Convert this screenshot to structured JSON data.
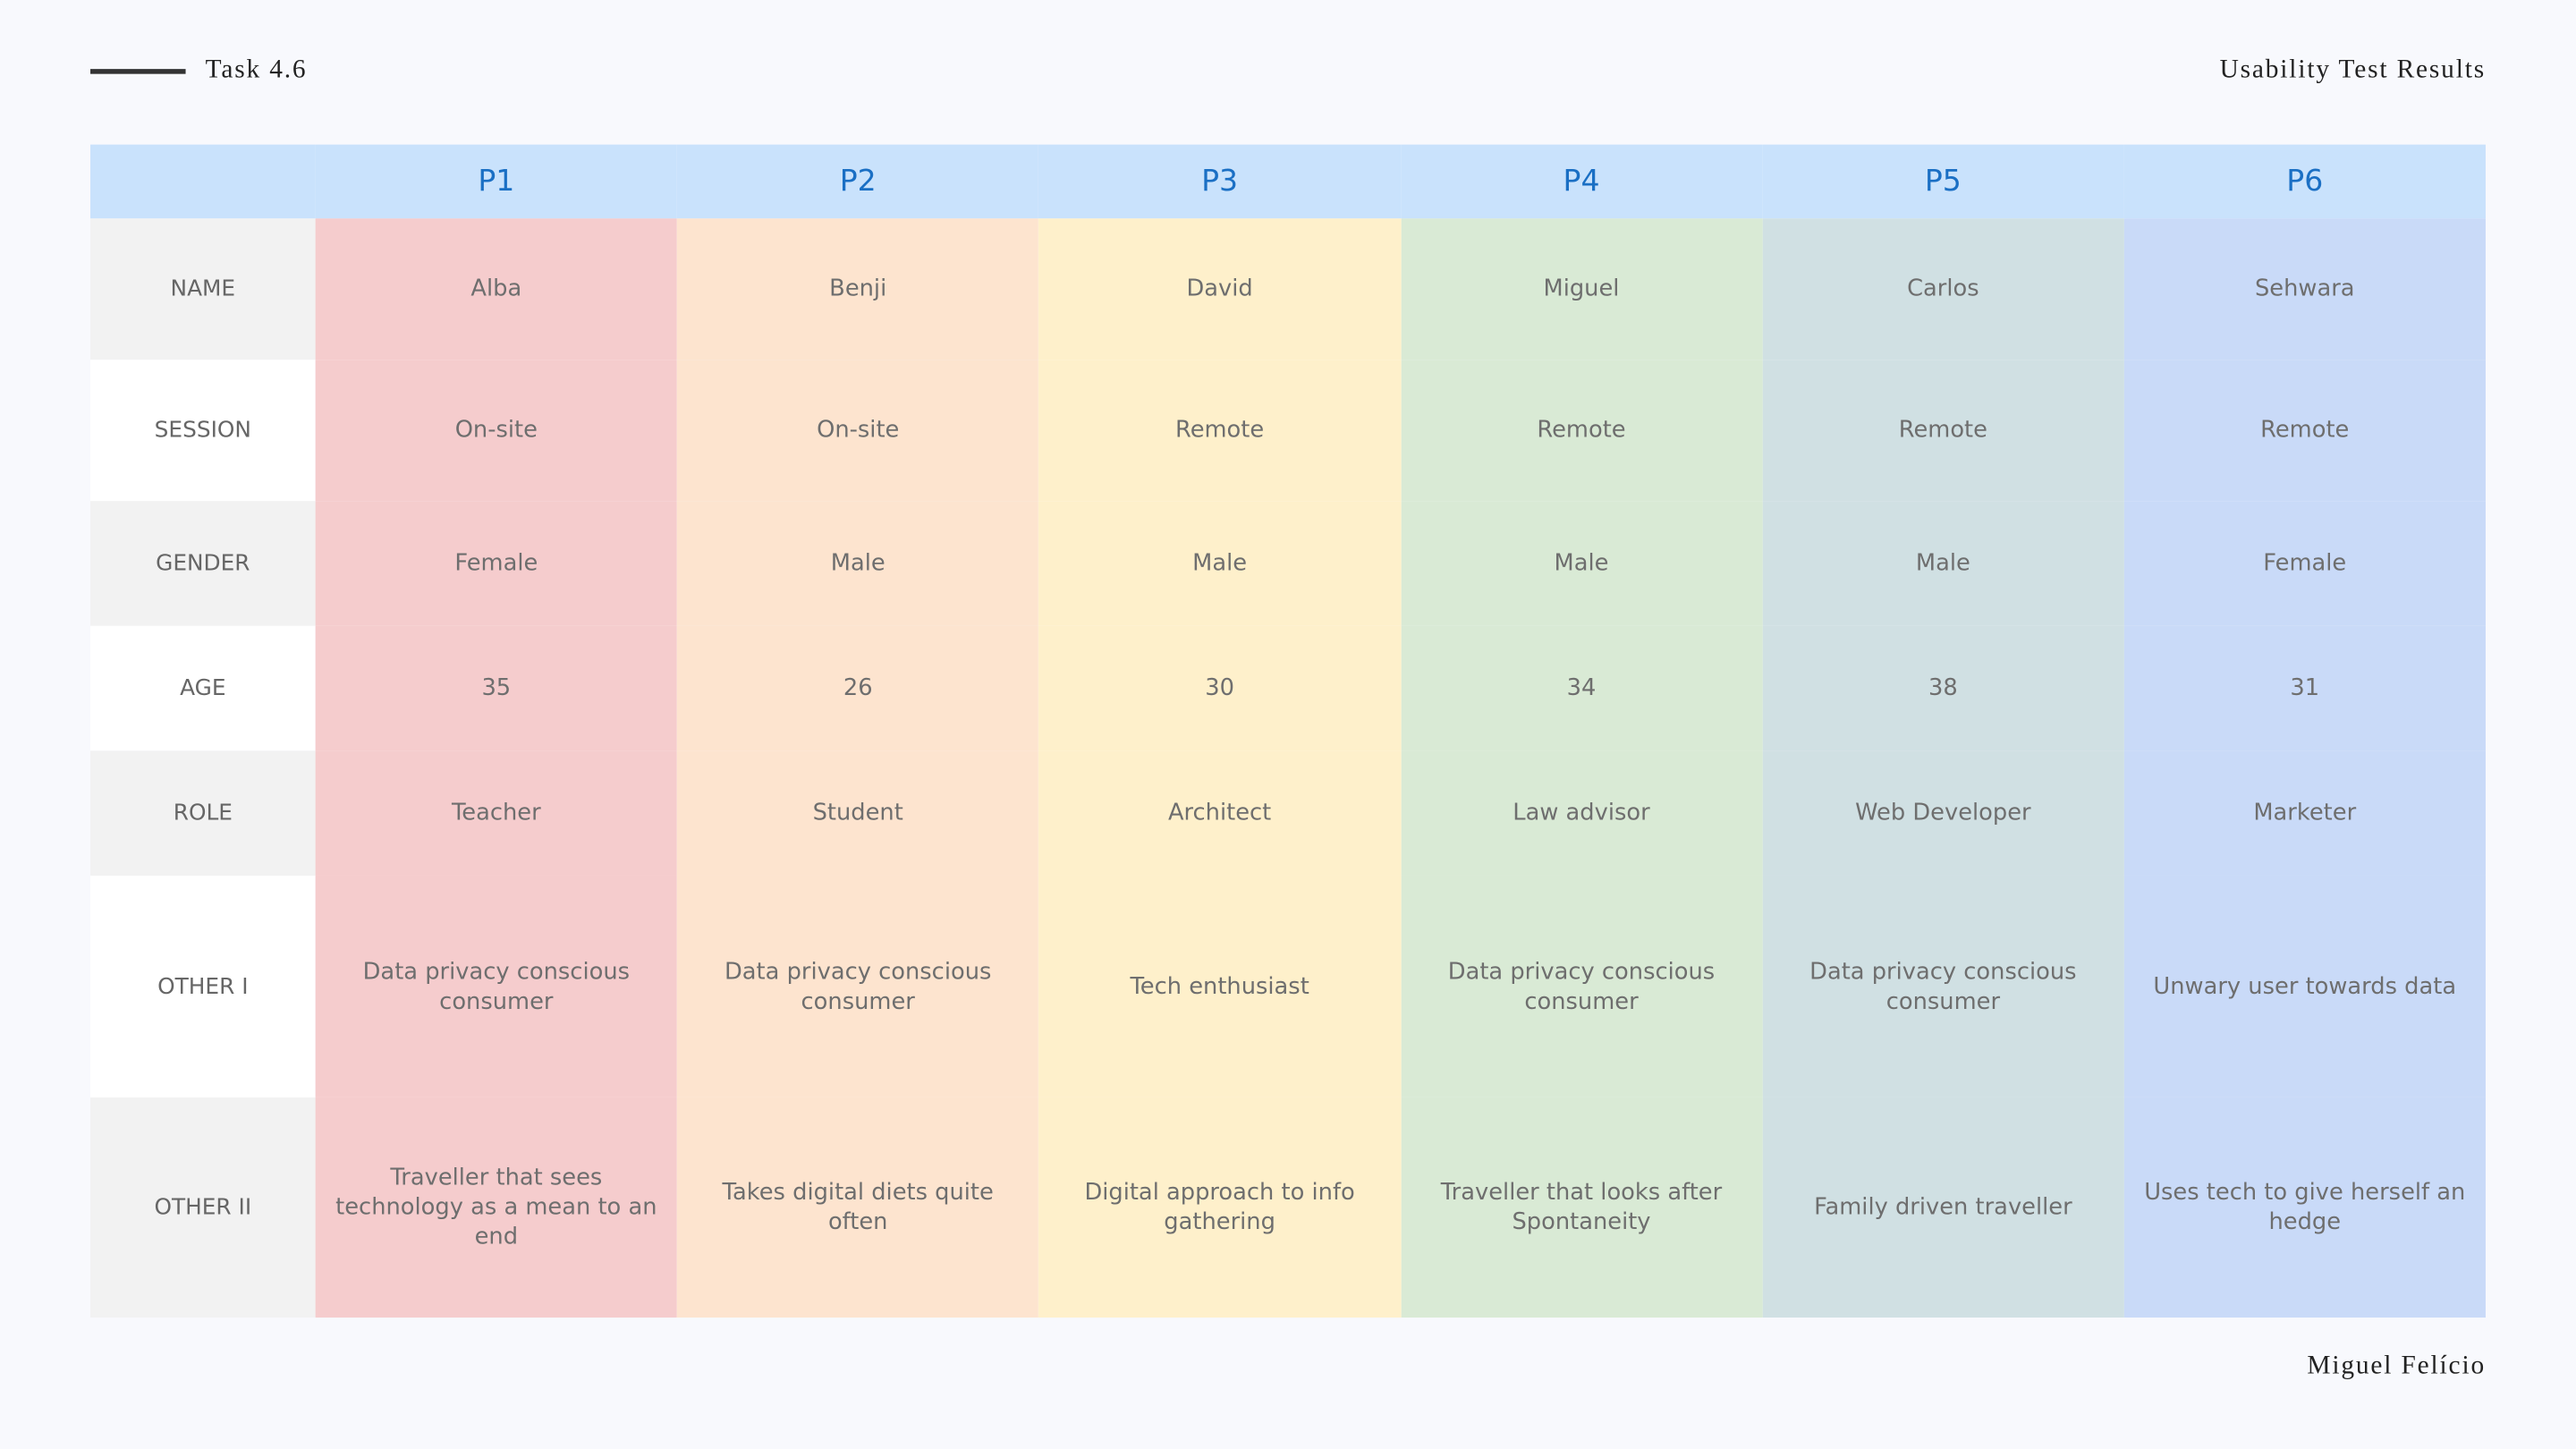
{
  "header": {
    "label": "Task 4.6",
    "title": "Usability Test Results"
  },
  "table": {
    "columns": [
      "P1",
      "P2",
      "P3",
      "P4",
      "P5",
      "P6"
    ],
    "rows": [
      [
        "NAME",
        "Alba",
        "Benji",
        "David",
        "Miguel",
        "Carlos",
        "Sehwara"
      ],
      [
        "SESSION",
        "On-site",
        "On-site",
        "Remote",
        "Remote",
        "Remote",
        "Remote"
      ],
      [
        "GENDER",
        "Female",
        "Male",
        "Male",
        "Male",
        "Male",
        "Female"
      ],
      [
        "AGE",
        "35",
        "26",
        "30",
        "34",
        "38",
        "31"
      ],
      [
        "ROLE",
        "Teacher",
        "Student",
        "Architect",
        "Law advisor",
        "Web Developer",
        "Marketer"
      ],
      [
        "OTHER I",
        "Data privacy conscious consumer",
        "Data privacy conscious consumer",
        "Tech enthusiast",
        "Data privacy conscious consumer",
        "Data privacy conscious consumer",
        "Unwary user towards data"
      ],
      [
        "OTHER II",
        "Traveller that sees technology as a mean to an end",
        "Takes digital diets quite often",
        "Digital approach to info gathering",
        "Traveller that looks after Spontaneity",
        "Family driven traveller",
        "Uses tech to give herself an hedge"
      ]
    ]
  },
  "footer": {
    "author": "Miguel Felício"
  }
}
